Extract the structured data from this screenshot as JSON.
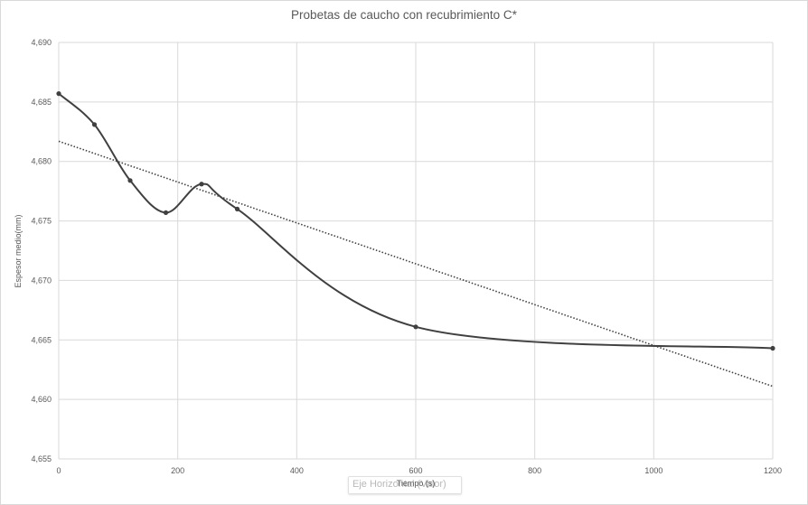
{
  "chart_data": {
    "type": "scatter",
    "title": "Probetas de caucho con recubrimiento C*",
    "xlabel": "Tiempo (s)",
    "ylabel": "Espesor medio(mm)",
    "xlim": [
      0,
      1200
    ],
    "ylim": [
      4.655,
      4.69
    ],
    "x_ticks": [
      0,
      200,
      400,
      600,
      800,
      1000,
      1200
    ],
    "y_ticks": [
      4.655,
      4.66,
      4.665,
      4.67,
      4.675,
      4.68,
      4.685,
      4.69
    ],
    "x_tick_labels": [
      "0",
      "200",
      "400",
      "600",
      "800",
      "1000",
      "1200"
    ],
    "y_tick_labels": [
      "4,655",
      "4,660",
      "4,665",
      "4,670",
      "4,675",
      "4,680",
      "4,685",
      "4,690"
    ],
    "grid": true,
    "series": [
      {
        "line_style": "smooth",
        "color": "#404040",
        "x": [
          0,
          60,
          120,
          180,
          240,
          300,
          600,
          1200
        ],
        "y": [
          4.6857,
          4.6831,
          4.6784,
          4.6757,
          4.6781,
          4.676,
          4.6661,
          4.6643
        ]
      }
    ],
    "trendline": {
      "type": "linear",
      "style": "dotted",
      "color": "#404040",
      "x": [
        0,
        1200
      ],
      "y": [
        4.6817,
        4.6611
      ]
    }
  },
  "overlay": {
    "placeholder_text": "Eje Horizontal (Valor)"
  }
}
